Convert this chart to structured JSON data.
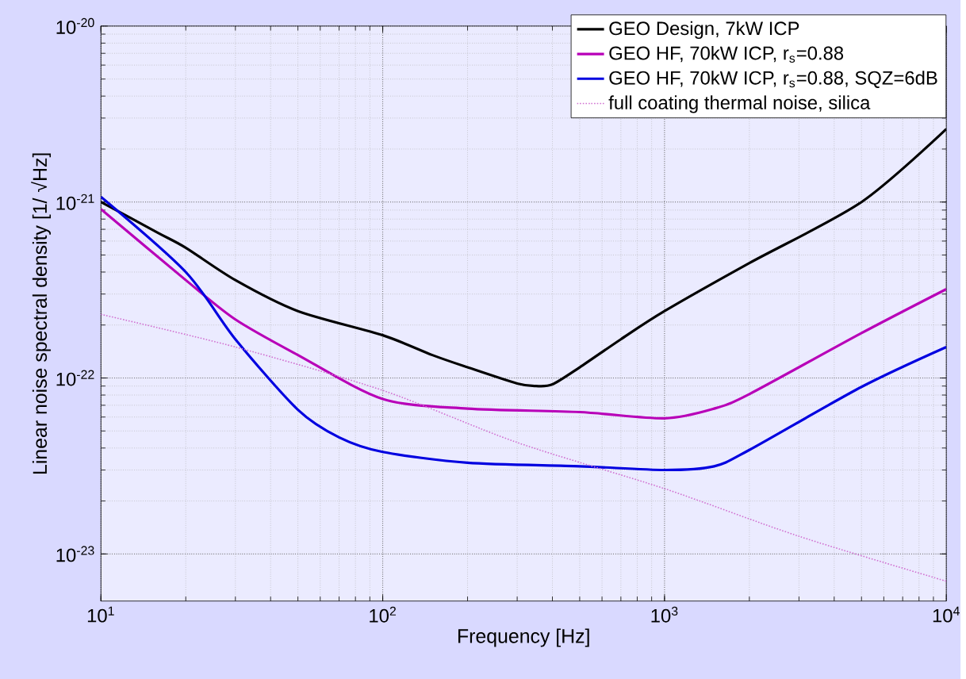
{
  "chart_data": {
    "type": "line",
    "xlabel": "Frequency  [Hz]",
    "ylabel": "Linear noise spectral density  [1/ √Hz]",
    "log": "xy",
    "grid": true,
    "legend": "top right",
    "xlim": [
      10,
      10000
    ],
    "ylim": [
      5.4e-24,
      1e-20
    ],
    "xticks": [
      {
        "value": 10,
        "label": "10$^{1}$"
      },
      {
        "value": 100,
        "label": "10$^{2}$"
      },
      {
        "value": 1000,
        "label": "10$^{3}$"
      },
      {
        "value": 10000,
        "label": "10$^{4}$"
      }
    ],
    "yticks": [
      {
        "value": 1e-23,
        "label": "10$^{-23}$"
      },
      {
        "value": 1e-22,
        "label": "10$^{-22}$"
      },
      {
        "value": 1e-21,
        "label": "10$^{-21}$"
      },
      {
        "value": 1e-20,
        "label": "10$^{-20}$"
      }
    ],
    "series": [
      {
        "name": "GEO Design, 7kW ICP",
        "color": "#000000",
        "x": [
          10,
          15.9,
          20,
          30,
          50,
          100,
          150,
          200,
          300,
          350,
          400,
          500,
          700,
          1000,
          2000,
          5000,
          10000
        ],
        "values": [
          1e-21,
          6.7e-22,
          5.5e-22,
          3.6e-22,
          2.4e-22,
          1.75e-22,
          1.35e-22,
          1.15e-22,
          9.3e-23,
          9e-23,
          9.2e-23,
          1.15e-22,
          1.66e-22,
          2.4e-22,
          4.5e-22,
          1e-21,
          2.6e-21
        ]
      },
      {
        "name": "GEO HF, 70kW ICP, r$_{s}$=0.88",
        "color": "#b800b8",
        "x": [
          10,
          20,
          30,
          50,
          100,
          200,
          500,
          1000,
          1500,
          2000,
          5000,
          10000
        ],
        "values": [
          9.1e-22,
          3.6e-22,
          2.15e-22,
          1.35e-22,
          7.6e-23,
          6.7e-23,
          6.4e-23,
          5.9e-23,
          6.7e-23,
          8.1e-23,
          1.8e-22,
          3.2e-22
        ]
      },
      {
        "name": "GEO HF, 70kW ICP, r$_{s}$=0.88, SQZ=6dB",
        "color": "#0000e0",
        "x": [
          10,
          20,
          30,
          50,
          70,
          100,
          200,
          500,
          1000,
          1500,
          2000,
          5000,
          10000
        ],
        "values": [
          1.07e-21,
          4e-22,
          1.66e-22,
          6.6e-23,
          4.6e-23,
          3.8e-23,
          3.3e-23,
          3.15e-23,
          3e-23,
          3.15e-23,
          3.9e-23,
          8.9e-23,
          1.5e-22
        ]
      },
      {
        "name": "full coating thermal noise, silica",
        "color": "#d070d0",
        "line_style": "dotted",
        "x": [
          10,
          30,
          100,
          300,
          1000,
          3000,
          10000
        ],
        "values": [
          2.3e-22,
          1.5e-22,
          8.5e-23,
          4.3e-23,
          2.35e-23,
          1.26e-23,
          7e-24
        ]
      }
    ]
  }
}
